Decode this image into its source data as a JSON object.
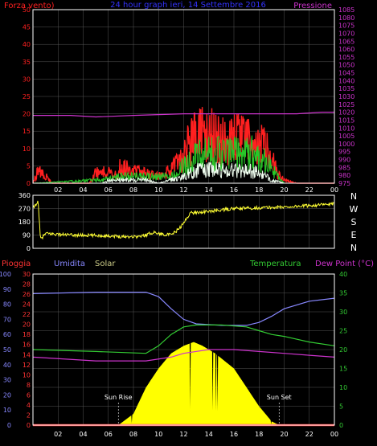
{
  "colors": {
    "background": "#000000",
    "panel_border": "#ffffff",
    "grid": "#555555",
    "wind_speed": "#ff2020",
    "wind_mid": "#28c828",
    "wind_gust": "#f0fff0",
    "pressure": "#cc33cc",
    "direction": "#ffff33",
    "rain": "#ff3333",
    "humidity": "#8888ff",
    "solar": "#ffff00",
    "temperature": "#33cc33",
    "dewpoint": "#cc33cc",
    "title": "#3333ff"
  },
  "chart_data": [
    {
      "type": "line",
      "title": "24 hour graph ieri, 14 Settembre 2016",
      "left_axis_label": "Forza vento)",
      "right_axis_label": "Pressione",
      "x_ticks": [
        "02",
        "04",
        "06",
        "08",
        "10",
        "12",
        "14",
        "16",
        "18",
        "20",
        "22",
        "00"
      ],
      "x_range": [
        0,
        24
      ],
      "left_ticks": [
        0,
        5,
        10,
        15,
        20,
        25,
        30,
        35,
        40,
        45,
        50
      ],
      "left_range": [
        0,
        50
      ],
      "right_ticks": [
        975,
        980,
        985,
        990,
        995,
        1000,
        1005,
        1010,
        1015,
        1020,
        1025,
        1030,
        1035,
        1040,
        1045,
        1050,
        1055,
        1060,
        1065,
        1070,
        1075,
        1080,
        1085
      ],
      "right_range": [
        975,
        1085
      ],
      "series": [
        {
          "key": "wind_speed",
          "axis": "left",
          "style": "spiky",
          "points": [
            [
              0,
              0
            ],
            [
              0.5,
              5
            ],
            [
              1.5,
              0
            ],
            [
              2,
              0
            ],
            [
              4.5,
              0
            ],
            [
              5,
              3
            ],
            [
              5.8,
              4
            ],
            [
              6.5,
              2
            ],
            [
              6.9,
              5
            ],
            [
              8,
              4
            ],
            [
              9,
              3
            ],
            [
              10,
              2
            ],
            [
              11,
              4
            ],
            [
              11.8,
              7
            ],
            [
              12.3,
              12
            ],
            [
              13.5,
              15
            ],
            [
              15,
              13
            ],
            [
              17,
              13
            ],
            [
              18,
              13
            ],
            [
              19,
              8
            ],
            [
              19.5,
              3
            ],
            [
              20,
              1
            ],
            [
              21,
              0
            ],
            [
              24,
              0
            ]
          ]
        },
        {
          "key": "wind_mid",
          "axis": "left",
          "style": "spiky",
          "points": [
            [
              0,
              0
            ],
            [
              5.5,
              1
            ],
            [
              7,
              2
            ],
            [
              9,
              2
            ],
            [
              11,
              2
            ],
            [
              12,
              5
            ],
            [
              13,
              8
            ],
            [
              14.5,
              9
            ],
            [
              16,
              9
            ],
            [
              17.5,
              9
            ],
            [
              18.5,
              7
            ],
            [
              19.5,
              2
            ],
            [
              20,
              0
            ],
            [
              24,
              0
            ]
          ]
        },
        {
          "key": "wind_gust",
          "axis": "left",
          "style": "spiky",
          "points": [
            [
              0,
              0
            ],
            [
              5.5,
              0
            ],
            [
              6,
              1
            ],
            [
              7,
              1
            ],
            [
              8,
              1
            ],
            [
              9,
              1
            ],
            [
              10,
              0
            ],
            [
              11,
              1
            ],
            [
              12,
              2
            ],
            [
              13,
              4
            ],
            [
              15,
              4
            ],
            [
              17,
              4
            ],
            [
              18,
              3
            ],
            [
              19,
              1
            ],
            [
              20,
              0
            ],
            [
              24,
              0
            ]
          ]
        },
        {
          "key": "pressure",
          "axis": "right",
          "style": "smooth",
          "points": [
            [
              0,
              1018
            ],
            [
              3,
              1018
            ],
            [
              5,
              1017
            ],
            [
              8,
              1018
            ],
            [
              12,
              1019
            ],
            [
              16,
              1019
            ],
            [
              19,
              1019
            ],
            [
              21,
              1019
            ],
            [
              23,
              1020
            ],
            [
              24,
              1020
            ]
          ]
        }
      ]
    },
    {
      "type": "line",
      "title": "",
      "y_ticks": [
        0,
        90,
        180,
        270,
        360
      ],
      "y_range": [
        0,
        360
      ],
      "right_labels": [
        "N",
        "W",
        "S",
        "E",
        "N"
      ],
      "x_range": [
        0,
        24
      ],
      "series": [
        {
          "key": "direction",
          "axis": "left",
          "style": "jittery",
          "points": [
            [
              0,
              270
            ],
            [
              0.4,
              320
            ],
            [
              0.6,
              60
            ],
            [
              1,
              100
            ],
            [
              3,
              90
            ],
            [
              6,
              85
            ],
            [
              7,
              80
            ],
            [
              8.5,
              80
            ],
            [
              9,
              90
            ],
            [
              9.6,
              110
            ],
            [
              10,
              100
            ],
            [
              11,
              90
            ],
            [
              11.6,
              130
            ],
            [
              12,
              170
            ],
            [
              12.5,
              240
            ],
            [
              14,
              250
            ],
            [
              16,
              270
            ],
            [
              18,
              275
            ],
            [
              20,
              280
            ],
            [
              22,
              290
            ],
            [
              24,
              300
            ]
          ]
        }
      ]
    },
    {
      "type": "area",
      "title": "",
      "legend": [
        "Pioggia",
        "Umidita",
        "Solar",
        "Temperatura",
        "Dew Point (°C)"
      ],
      "x_ticks": [
        "02",
        "04",
        "06",
        "08",
        "10",
        "12",
        "14",
        "16",
        "18",
        "20",
        "22",
        "00"
      ],
      "x_range": [
        0,
        24
      ],
      "humidity_ticks": [
        0,
        10,
        20,
        30,
        40,
        50,
        60,
        70,
        80,
        90,
        100
      ],
      "humidity_range": [
        0,
        100
      ],
      "rain_ticks": [
        0,
        2,
        4,
        6,
        8,
        10,
        12,
        14,
        16,
        18,
        20,
        22,
        24,
        26,
        28,
        30
      ],
      "rain_range": [
        0,
        30
      ],
      "temp_ticks": [
        0,
        5,
        10,
        15,
        20,
        25,
        30,
        35,
        40
      ],
      "temp_range": [
        0,
        40
      ],
      "annotations": [
        {
          "text": "Sun Rise",
          "x": 6.8
        },
        {
          "text": "Sun Set",
          "x": 19.6
        }
      ],
      "series": [
        {
          "key": "solar",
          "axis": "temp",
          "style": "fill",
          "points": [
            [
              6.8,
              0
            ],
            [
              8,
              3
            ],
            [
              9,
              10
            ],
            [
              10,
              15
            ],
            [
              11,
              19
            ],
            [
              12,
              21
            ],
            [
              12.8,
              22
            ],
            [
              13.5,
              21
            ],
            [
              14.5,
              19
            ],
            [
              16,
              15
            ],
            [
              17,
              10
            ],
            [
              18,
              5
            ],
            [
              19,
              1
            ],
            [
              19.6,
              0
            ]
          ]
        },
        {
          "key": "humidity",
          "axis": "humidity",
          "style": "smooth",
          "points": [
            [
              0,
              87
            ],
            [
              5,
              88
            ],
            [
              9,
              88
            ],
            [
              10,
              85
            ],
            [
              11,
              77
            ],
            [
              12,
              70
            ],
            [
              13,
              67
            ],
            [
              15,
              66
            ],
            [
              17,
              66
            ],
            [
              18,
              68
            ],
            [
              19,
              72
            ],
            [
              20,
              77
            ],
            [
              22,
              82
            ],
            [
              24,
              84
            ]
          ]
        },
        {
          "key": "temperature",
          "axis": "temp",
          "style": "smooth",
          "points": [
            [
              0,
              20
            ],
            [
              5,
              19.5
            ],
            [
              9,
              19
            ],
            [
              10,
              21
            ],
            [
              11,
              24
            ],
            [
              12,
              26
            ],
            [
              13,
              26.5
            ],
            [
              15,
              26.5
            ],
            [
              17,
              26
            ],
            [
              18,
              25
            ],
            [
              19,
              24
            ],
            [
              20,
              23.5
            ],
            [
              22,
              22
            ],
            [
              24,
              21
            ]
          ]
        },
        {
          "key": "dewpoint",
          "axis": "temp",
          "style": "smooth",
          "points": [
            [
              0,
              18
            ],
            [
              5,
              17
            ],
            [
              9,
              17
            ],
            [
              11,
              18
            ],
            [
              12,
              19
            ],
            [
              14,
              20
            ],
            [
              16,
              20
            ],
            [
              18,
              19.5
            ],
            [
              20,
              19
            ],
            [
              22,
              18.5
            ],
            [
              24,
              18
            ]
          ]
        },
        {
          "key": "rain",
          "axis": "rain",
          "style": "flat",
          "points": [
            [
              0,
              0
            ],
            [
              24,
              0
            ]
          ]
        }
      ]
    }
  ]
}
